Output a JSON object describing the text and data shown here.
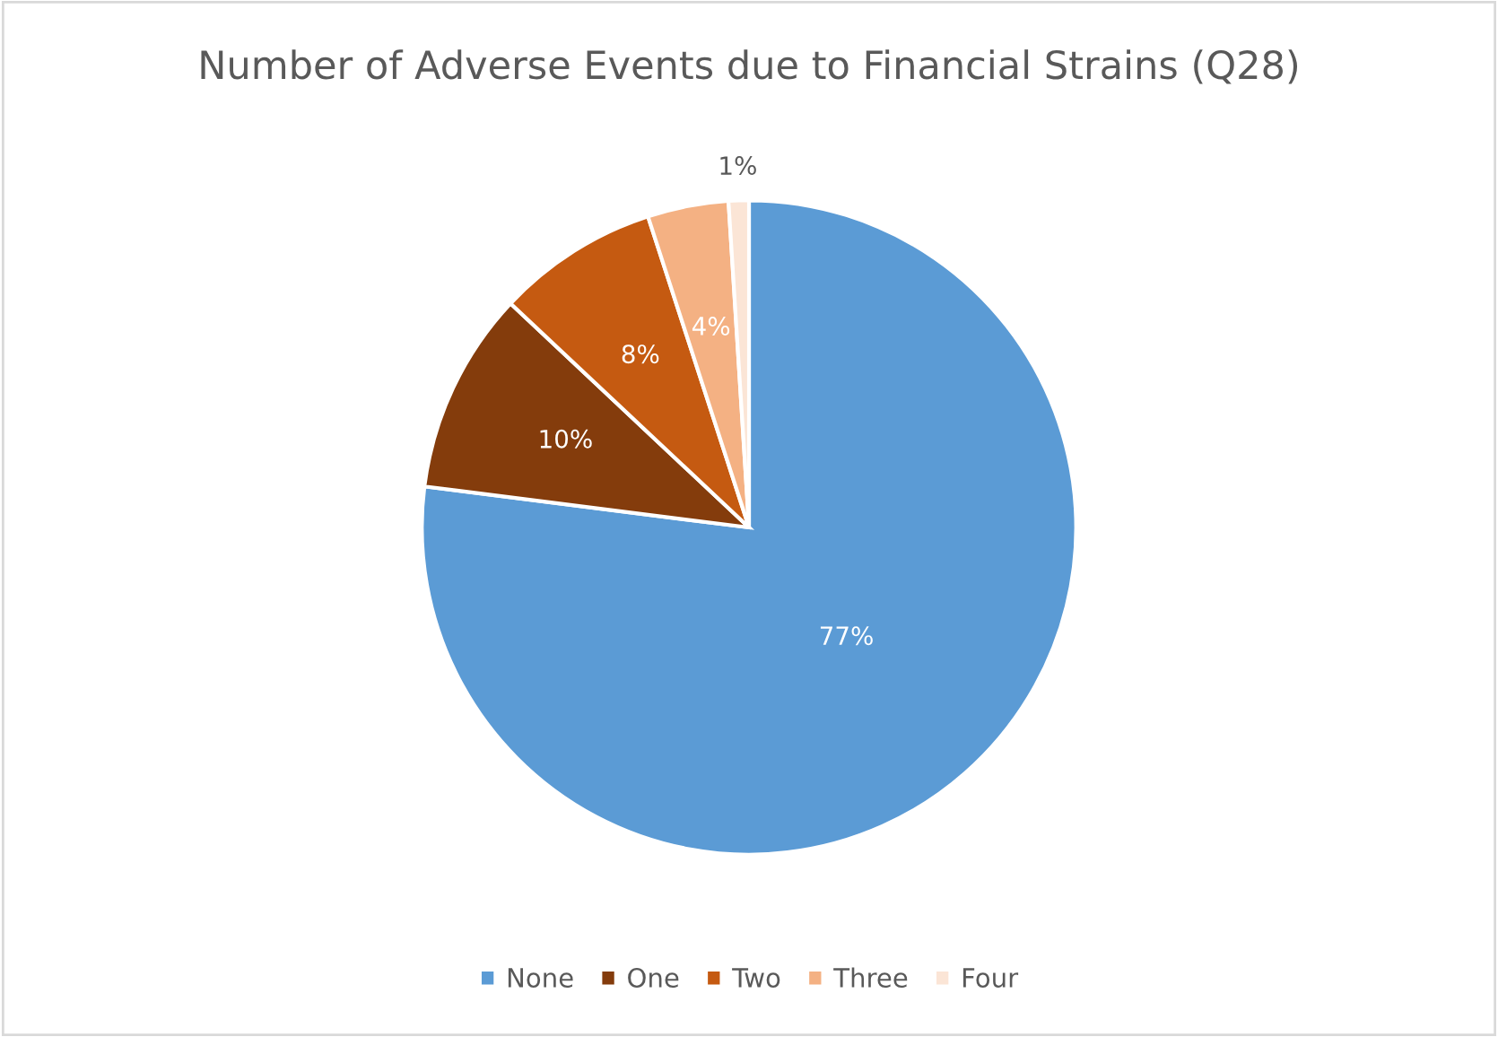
{
  "chart_data": {
    "type": "pie",
    "title": "Number of Adverse Events due to Financial Strains (Q28)",
    "categories": [
      "None",
      "One",
      "Two",
      "Three",
      "Four"
    ],
    "values": [
      77,
      10,
      8,
      4,
      1
    ],
    "colors": [
      "#5b9bd5",
      "#843c0c",
      "#c55a11",
      "#f4b183",
      "#fbe5d6"
    ],
    "value_labels": [
      "77%",
      "10%",
      "8%",
      "4%",
      "1%"
    ],
    "legend": "bottom"
  }
}
